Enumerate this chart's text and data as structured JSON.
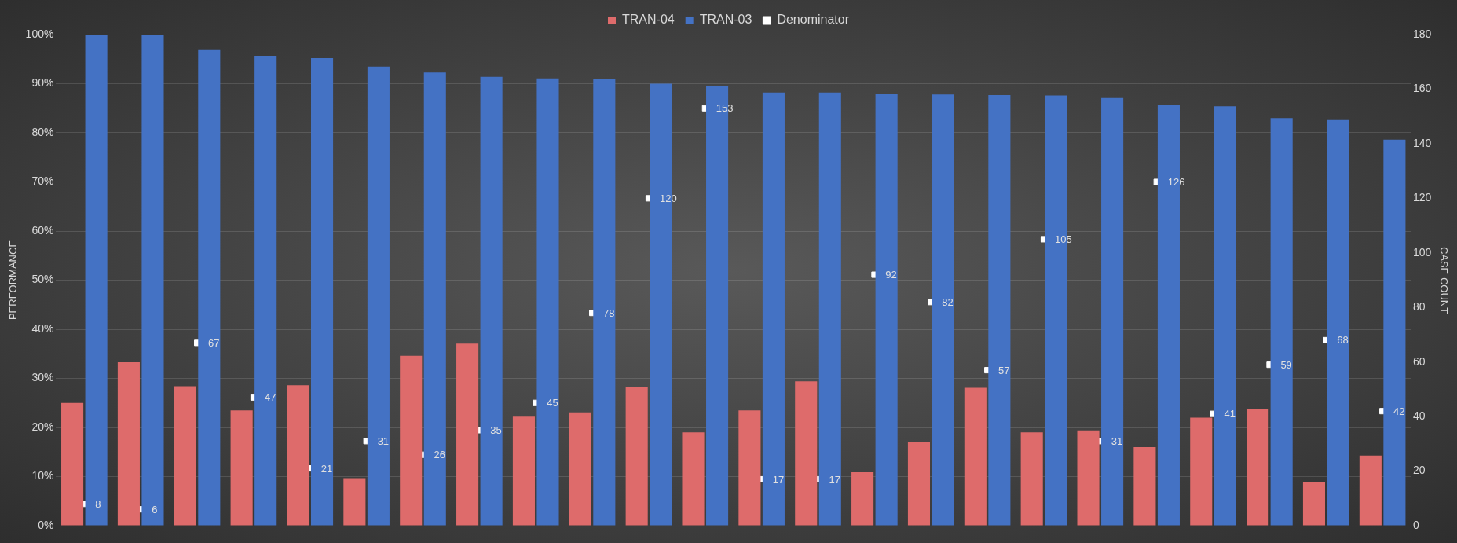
{
  "chart_data": {
    "type": "bar",
    "ylabel": "PERFORMANCE",
    "y2label": "CASE COUNT",
    "categories": [
      null,
      null,
      null,
      null,
      null,
      null,
      null,
      null,
      null,
      null,
      null,
      null,
      null,
      null,
      null,
      null,
      null,
      null,
      null,
      null,
      null,
      null,
      null,
      null
    ],
    "series": [
      {
        "name": "TRAN-04",
        "color": "#de6b6b",
        "values": [
          25,
          33.3,
          28.4,
          23.5,
          28.6,
          9.7,
          34.6,
          37.1,
          22.2,
          23.1,
          28.3,
          19,
          23.5,
          29.4,
          10.9,
          17.1,
          28.1,
          19,
          19.4,
          16,
          22,
          23.7,
          8.8,
          14.3
        ]
      },
      {
        "name": "TRAN-03",
        "color": "#4472c4",
        "values": [
          100,
          100,
          97,
          95.7,
          95.2,
          93.5,
          92.3,
          91.4,
          91.1,
          91,
          90,
          89.5,
          88.2,
          88.2,
          88,
          87.8,
          87.7,
          87.6,
          87.1,
          85.7,
          85.4,
          83,
          82.6,
          78.6
        ]
      },
      {
        "name": "Denominator",
        "type": "scatter",
        "axis": "y2",
        "color": "#ffffff",
        "marker": "square",
        "values": [
          8,
          6,
          67,
          47,
          21,
          31,
          26,
          35,
          45,
          78,
          120,
          153,
          17,
          17,
          92,
          82,
          57,
          105,
          31,
          126,
          41,
          59,
          68,
          42
        ],
        "value_labels": [
          "8",
          "6",
          "67",
          "47",
          "21",
          "31",
          "26",
          "35",
          "45",
          "78",
          "120",
          "153",
          "17",
          "17",
          "92",
          "82",
          "57",
          "105",
          "31",
          "126",
          "41",
          "59",
          "68",
          "42"
        ]
      }
    ],
    "ylim": [
      0,
      100
    ],
    "yticks": [
      {
        "value": 0,
        "label": "0%"
      },
      {
        "value": 10,
        "label": "10%"
      },
      {
        "value": 20,
        "label": "20%"
      },
      {
        "value": 30,
        "label": "30%"
      },
      {
        "value": 40,
        "label": "40%"
      },
      {
        "value": 50,
        "label": "50%"
      },
      {
        "value": 60,
        "label": "60%"
      },
      {
        "value": 70,
        "label": "70%"
      },
      {
        "value": 80,
        "label": "80%"
      },
      {
        "value": 90,
        "label": "90%"
      },
      {
        "value": 100,
        "label": "100%"
      }
    ],
    "y2lim": [
      0,
      180
    ],
    "y2ticks": [
      0,
      20,
      40,
      60,
      80,
      100,
      120,
      140,
      160,
      180
    ],
    "grid": "y",
    "legend": "top"
  }
}
